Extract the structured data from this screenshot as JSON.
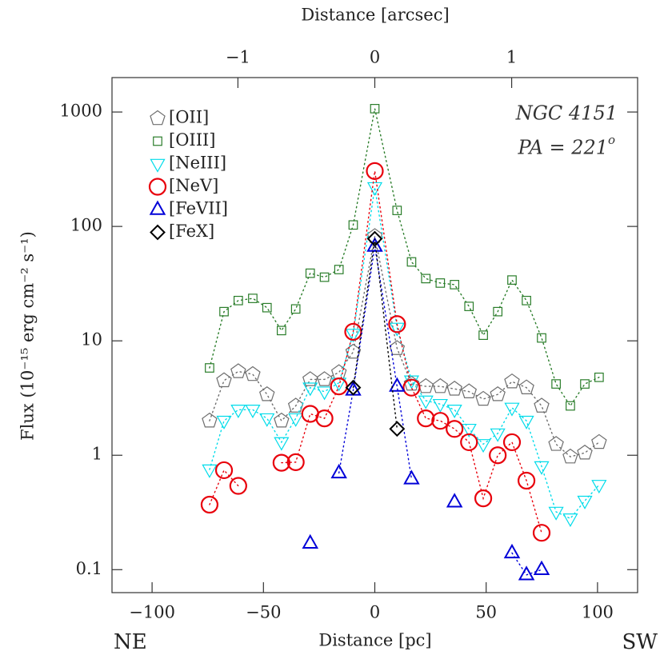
{
  "chart_data": {
    "type": "scatter",
    "x_label": "Distance [pc]",
    "x2_label": "Distance [arcsec]",
    "y_label": "Flux (10⁻¹⁵ erg cm⁻² s⁻¹)",
    "corner_labels": [
      "NE",
      "SW"
    ],
    "annotations": [
      {
        "text": "NGC 4151"
      },
      {
        "text": "PA = 221",
        "sup": "o"
      }
    ],
    "log_y": true,
    "legend": "upper left",
    "xlim": [
      -118,
      118
    ],
    "xticks": [
      {
        "value": -100,
        "label": "−100"
      },
      {
        "value": -50,
        "label": "−50"
      },
      0,
      50,
      100
    ],
    "x2lim": [
      -1.92,
      1.92
    ],
    "x2ticks": [
      {
        "value": -1,
        "label": "−1"
      },
      0,
      1
    ],
    "ylim": [
      0.063,
      2000
    ],
    "yticks": [
      0.1,
      1,
      10,
      100,
      1000
    ],
    "x": [
      -74.2,
      -67.7,
      -61.3,
      -54.8,
      -48.4,
      -41.9,
      -35.5,
      -29.0,
      -22.6,
      -16.1,
      -9.7,
      0,
      10.0,
      16.5,
      22.9,
      29.4,
      35.8,
      42.3,
      48.7,
      55.2,
      61.6,
      68.1,
      74.9,
      81.4,
      87.8,
      94.3,
      100.7
    ],
    "series": [
      {
        "name": "[OII]",
        "marker": "pentagon",
        "color": "#6e6e6e",
        "values": [
          2.0,
          4.5,
          5.4,
          5.1,
          3.4,
          2.0,
          2.7,
          4.6,
          4.6,
          5.3,
          8.0,
          82,
          8.6,
          4.2,
          4.0,
          4.0,
          3.8,
          3.6,
          3.1,
          3.4,
          4.4,
          3.9,
          2.7,
          1.25,
          0.97,
          1.05,
          1.3
        ]
      },
      {
        "name": "[OIII]",
        "marker": "square",
        "color": "#2a7d2a",
        "values": [
          5.8,
          18,
          22.5,
          23.5,
          19.5,
          12.3,
          19,
          39,
          36,
          42,
          103,
          1070,
          138,
          49,
          35,
          32,
          31,
          20,
          11.2,
          18,
          34,
          22.5,
          10.6,
          4.2,
          2.7,
          4.2,
          4.8
        ]
      },
      {
        "name": "[NeIII]",
        "marker": "triangle-down",
        "color": "#00dcea",
        "values": [
          0.75,
          2.0,
          2.5,
          2.5,
          2.1,
          1.3,
          2.1,
          3.9,
          3.6,
          4.3,
          11.5,
          220,
          13,
          4.5,
          3.0,
          2.8,
          2.5,
          1.7,
          1.25,
          1.55,
          2.6,
          2.0,
          0.8,
          0.32,
          0.28,
          0.4,
          0.55
        ]
      },
      {
        "name": "[NeV]",
        "marker": "circle",
        "color": "#e8000b",
        "values": [
          0.37,
          0.74,
          0.54,
          null,
          null,
          0.86,
          0.87,
          2.3,
          2.1,
          4.0,
          12,
          305,
          14,
          3.9,
          2.1,
          2.0,
          1.7,
          1.3,
          0.42,
          1.0,
          1.3,
          0.6,
          0.21,
          null,
          null,
          null,
          null
        ]
      },
      {
        "name": "[FeVII]",
        "marker": "triangle-up",
        "color": "#0000d8",
        "values": [
          null,
          null,
          null,
          null,
          null,
          null,
          null,
          0.17,
          null,
          0.7,
          3.7,
          67,
          4.0,
          0.62,
          null,
          null,
          0.39,
          null,
          null,
          null,
          0.14,
          0.09,
          0.1,
          null,
          null,
          null,
          null
        ]
      },
      {
        "name": "[FeX]",
        "marker": "diamond",
        "color": "#000000",
        "values": [
          null,
          null,
          null,
          null,
          null,
          null,
          null,
          null,
          null,
          null,
          3.9,
          78,
          1.7,
          null,
          null,
          null,
          null,
          null,
          null,
          null,
          null,
          null,
          null,
          null,
          null,
          null,
          null
        ]
      }
    ]
  }
}
